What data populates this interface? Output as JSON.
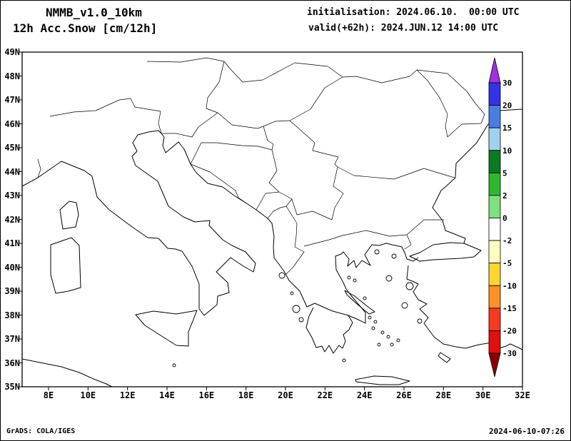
{
  "header": {
    "model": "NMMB_v1.0_10km",
    "field": "12h Acc.Snow [cm/12h]",
    "init_line": "initialisation: 2024.06.10.  00:00 UTC",
    "valid_line": "valid(+62h): 2024.JUN.12 14:00 UTC"
  },
  "map": {
    "lat_labels": [
      "49N",
      "48N",
      "47N",
      "46N",
      "45N",
      "44N",
      "43N",
      "42N",
      "41N",
      "40N",
      "39N",
      "38N",
      "37N",
      "36N",
      "35N"
    ],
    "lon_labels": [
      "8E",
      "10E",
      "12E",
      "14E",
      "16E",
      "18E",
      "20E",
      "22E",
      "24E",
      "26E",
      "28E",
      "30E",
      "32E"
    ]
  },
  "colorbar": {
    "tick_labels": [
      "30",
      "20",
      "15",
      "10",
      "5",
      "2",
      "0",
      "-2",
      "-5",
      "-10",
      "-15",
      "-20",
      "-30"
    ],
    "segment_colors": [
      "#3333e6",
      "#4a7de2",
      "#a0d2f0",
      "#0c7a23",
      "#2eb82e",
      "#7fe07f",
      "#ffffff",
      "#ffffbe",
      "#ffd633",
      "#ff9126",
      "#f63a20",
      "#e01010"
    ],
    "arrow_top_color": "#a030e0",
    "arrow_bottom_color": "#8c0000"
  },
  "footer": {
    "credit": "GrADS: COLA/IGES",
    "generated": "2024-06-10-07:26"
  }
}
